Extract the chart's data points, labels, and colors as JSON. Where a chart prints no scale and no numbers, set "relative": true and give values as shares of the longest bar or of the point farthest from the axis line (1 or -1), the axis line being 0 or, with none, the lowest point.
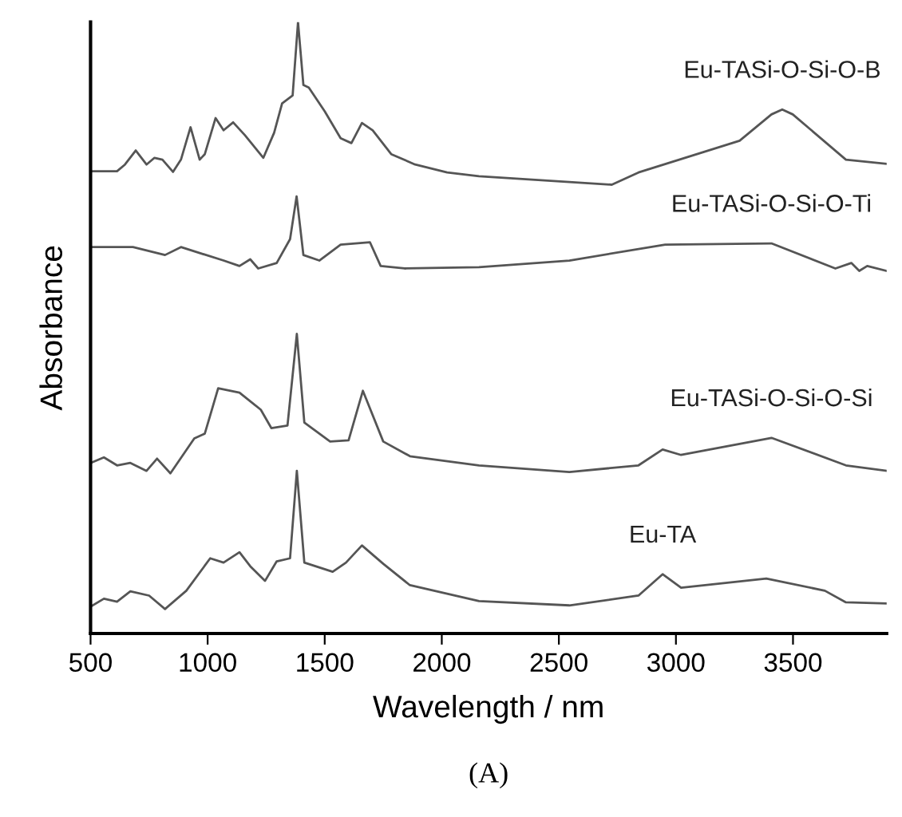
{
  "chart_data": {
    "type": "line",
    "relative": true,
    "xlabel": "Wavelength / nm",
    "ylabel": "Absorbance",
    "xlim": [
      500,
      3900
    ],
    "xticks": [
      500,
      1000,
      1500,
      2000,
      2500,
      3000,
      3500
    ],
    "grid": false,
    "legend": false,
    "marker": "none",
    "line_style": "solid",
    "annotations": [
      "(A)"
    ],
    "series": [
      {
        "name": "Eu-TASi-O-Si-O-B",
        "color": "#555555",
        "x": [
          500,
          613,
          647,
          693,
          739,
          773,
          807,
          852,
          886,
          927,
          966,
          988,
          1034,
          1068,
          1109,
          1159,
          1238,
          1284,
          1318,
          1363,
          1386,
          1409,
          1432,
          1500,
          1568,
          1614,
          1659,
          1705,
          1784,
          1886,
          2023,
          2159,
          2726,
          2840,
          3090,
          3272,
          3408,
          3454,
          3499,
          3726,
          3900
        ],
        "values": [
          0.756,
          0.756,
          0.767,
          0.79,
          0.767,
          0.778,
          0.775,
          0.755,
          0.775,
          0.828,
          0.775,
          0.784,
          0.843,
          0.823,
          0.836,
          0.815,
          0.778,
          0.819,
          0.867,
          0.88,
          1.0,
          0.897,
          0.893,
          0.854,
          0.81,
          0.802,
          0.835,
          0.823,
          0.784,
          0.767,
          0.754,
          0.748,
          0.734,
          0.754,
          0.784,
          0.806,
          0.849,
          0.857,
          0.849,
          0.775,
          0.768
        ]
      },
      {
        "name": "Eu-TASi-O-Si-O-Ti",
        "color": "#555555",
        "x": [
          500,
          681,
          818,
          886,
          1068,
          1136,
          1182,
          1216,
          1295,
          1352,
          1380,
          1409,
          1477,
          1568,
          1693,
          1739,
          1841,
          2159,
          2545,
          2954,
          3408,
          3681,
          3749,
          3783,
          3817,
          3900
        ],
        "values": [
          0.632,
          0.632,
          0.619,
          0.632,
          0.61,
          0.601,
          0.612,
          0.597,
          0.606,
          0.645,
          0.715,
          0.619,
          0.61,
          0.636,
          0.64,
          0.601,
          0.597,
          0.599,
          0.61,
          0.636,
          0.638,
          0.597,
          0.606,
          0.593,
          0.601,
          0.593
        ]
      },
      {
        "name": "Eu-TASi-O-Si-O-Si",
        "color": "#555555",
        "x": [
          500,
          557,
          613,
          670,
          739,
          784,
          841,
          943,
          988,
          1045,
          1136,
          1227,
          1272,
          1341,
          1381,
          1413,
          1523,
          1602,
          1663,
          1750,
          1864,
          2159,
          2545,
          2840,
          2943,
          3022,
          3408,
          3726,
          3900
        ],
        "values": [
          0.279,
          0.288,
          0.275,
          0.279,
          0.266,
          0.286,
          0.262,
          0.319,
          0.327,
          0.401,
          0.394,
          0.366,
          0.336,
          0.34,
          0.49,
          0.345,
          0.314,
          0.316,
          0.397,
          0.314,
          0.29,
          0.275,
          0.264,
          0.275,
          0.301,
          0.292,
          0.32,
          0.275,
          0.266
        ]
      },
      {
        "name": "Eu-TA",
        "color": "#555555",
        "x": [
          500,
          557,
          613,
          670,
          750,
          818,
          909,
          1011,
          1068,
          1136,
          1182,
          1245,
          1295,
          1352,
          1381,
          1413,
          1534,
          1591,
          1659,
          1750,
          1864,
          2159,
          2545,
          2840,
          2943,
          3022,
          3386,
          3636,
          3726,
          3900
        ],
        "values": [
          0.044,
          0.057,
          0.052,
          0.069,
          0.062,
          0.04,
          0.07,
          0.123,
          0.116,
          0.133,
          0.11,
          0.086,
          0.118,
          0.123,
          0.266,
          0.116,
          0.101,
          0.116,
          0.144,
          0.114,
          0.079,
          0.053,
          0.046,
          0.062,
          0.097,
          0.075,
          0.09,
          0.07,
          0.051,
          0.049
        ]
      }
    ]
  }
}
